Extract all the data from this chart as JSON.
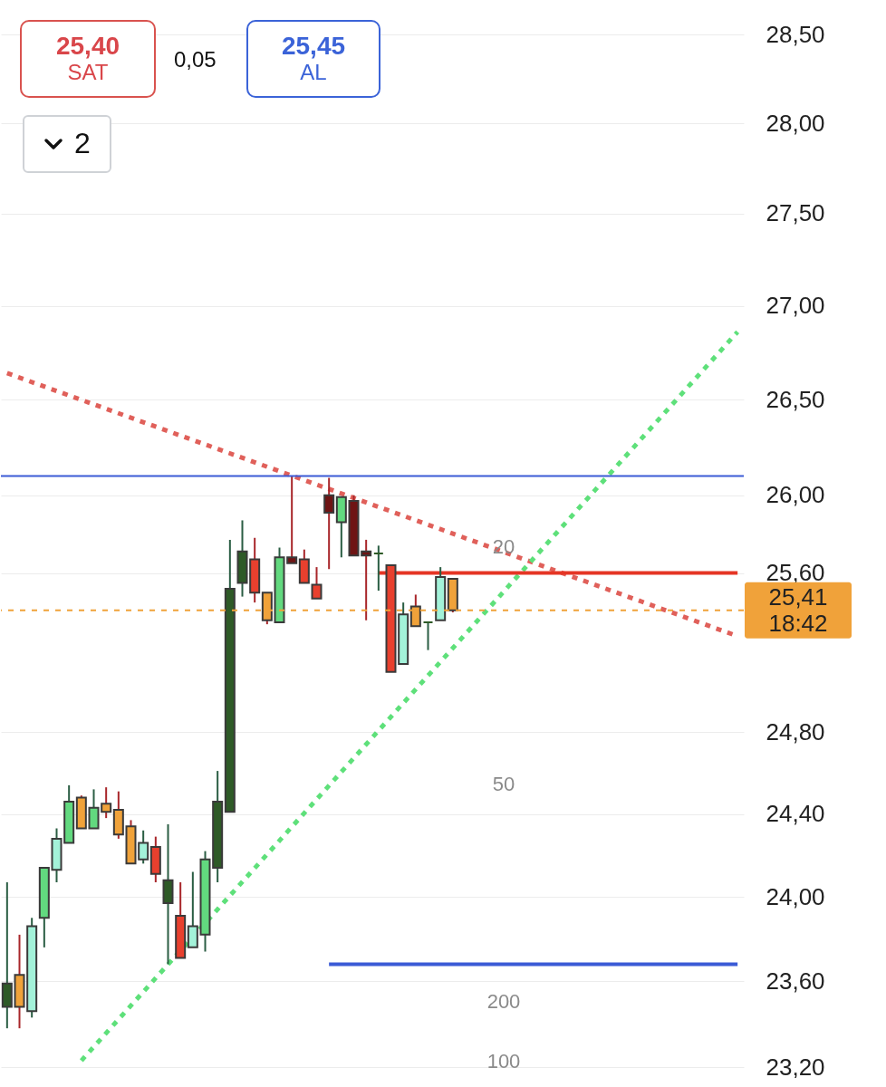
{
  "chart_data": {
    "type": "candlestick",
    "log": "y",
    "grid": "y",
    "tick_labels": "y",
    "categories": [
      null,
      null,
      null,
      null,
      null,
      null,
      null,
      null,
      null,
      null,
      null,
      null,
      null,
      null,
      null,
      null,
      null,
      null,
      null,
      null,
      null,
      null,
      null,
      null,
      null,
      null,
      null,
      null,
      null,
      null,
      null,
      null,
      null,
      null,
      null,
      null,
      null,
      null,
      null,
      null,
      null,
      null,
      null,
      null,
      null,
      null,
      null,
      null,
      null,
      null,
      null,
      null,
      null,
      null,
      null,
      null,
      null,
      null,
      null,
      null
    ],
    "ohlc": [
      [
        23.48,
        24.07,
        23.38,
        23.59
      ],
      [
        23.63,
        23.82,
        23.38,
        23.48
      ],
      [
        23.46,
        23.9,
        23.43,
        23.86
      ],
      [
        23.9,
        24.14,
        23.76,
        24.14
      ],
      [
        24.13,
        24.33,
        24.07,
        24.28
      ],
      [
        24.26,
        24.54,
        24.26,
        24.46
      ],
      [
        24.48,
        24.49,
        24.33,
        24.33
      ],
      [
        24.33,
        24.52,
        24.33,
        24.43
      ],
      [
        24.45,
        24.53,
        24.38,
        24.41
      ],
      [
        24.42,
        24.51,
        24.28,
        24.3
      ],
      [
        24.34,
        24.37,
        24.16,
        24.16
      ],
      [
        24.18,
        24.32,
        24.16,
        24.26
      ],
      [
        24.24,
        24.29,
        24.07,
        24.11
      ],
      [
        23.97,
        24.35,
        23.68,
        24.08
      ],
      [
        23.91,
        24.07,
        23.71,
        23.71
      ],
      [
        23.76,
        24.12,
        23.76,
        23.86
      ],
      [
        23.82,
        24.22,
        23.74,
        24.18
      ],
      [
        24.14,
        24.61,
        24.07,
        24.46
      ],
      [
        24.41,
        25.77,
        24.41,
        25.52
      ],
      [
        25.55,
        25.87,
        25.48,
        25.71
      ],
      [
        25.67,
        25.78,
        25.45,
        25.5
      ],
      [
        25.5,
        25.5,
        25.34,
        25.36
      ],
      [
        25.35,
        25.73,
        25.35,
        25.68
      ],
      [
        25.68,
        26.1,
        25.65,
        25.65
      ],
      [
        25.67,
        25.72,
        25.55,
        25.55
      ],
      [
        25.54,
        25.63,
        25.47,
        25.47
      ],
      [
        26.0,
        26.09,
        25.62,
        25.91
      ],
      [
        25.86,
        25.99,
        25.68,
        25.99
      ],
      [
        25.97,
        26.0,
        25.69,
        25.69
      ],
      [
        25.71,
        25.77,
        25.36,
        25.69
      ],
      [
        25.7,
        25.74,
        25.51,
        25.7
      ],
      [
        25.64,
        25.64,
        25.1,
        25.1
      ],
      [
        25.14,
        25.45,
        25.14,
        25.39
      ],
      [
        25.43,
        25.49,
        25.33,
        25.33
      ],
      [
        25.35,
        25.35,
        25.21,
        25.35
      ],
      [
        25.36,
        25.63,
        25.36,
        25.58
      ],
      [
        25.57,
        25.57,
        25.4,
        25.41
      ],
      null,
      null,
      null,
      null,
      null,
      null,
      null,
      null,
      null,
      null,
      null,
      null,
      null,
      null,
      null,
      null,
      null,
      null,
      null,
      null,
      null,
      null,
      null
    ],
    "colors": [
      "#2e5a27",
      "#f0a23a",
      "#a3f2d9",
      "#62d97f",
      "#a3f2d9",
      "#62d97f",
      "#f0a23a",
      "#62d97f",
      "#f0a23a",
      "#f0a23a",
      "#f0a23a",
      "#a3f2d9",
      "#e8402e",
      "#2e5a27",
      "#e8402e",
      "#a3f2d9",
      "#62d97f",
      "#2e5a27",
      "#2e5a27",
      "#2e5a27",
      "#e8402e",
      "#f0a23a",
      "#62d97f",
      "#6e1414",
      "#e8402e",
      "#e8402e",
      "#6e1414",
      "#62d97f",
      "#6e1414",
      "#6e1414",
      "#2e5a27",
      "#e8402e",
      "#a3f2d9",
      "#f0a23a",
      "#2e5a27",
      "#a3f2d9",
      "#f0a23a",
      null,
      null,
      null,
      null,
      null,
      null,
      null,
      null,
      null,
      null,
      null,
      null,
      null,
      null,
      null,
      null,
      null,
      null,
      null,
      null,
      null,
      null,
      null
    ],
    "series": [
      {
        "type": "line",
        "color": "#e0605a",
        "line_style": "dotted",
        "values": [
          26.64,
          null,
          null,
          null,
          null,
          null,
          null,
          null,
          null,
          null,
          null,
          null,
          null,
          null,
          null,
          null,
          null,
          null,
          null,
          null,
          null,
          null,
          null,
          null,
          null,
          null,
          null,
          null,
          null,
          null,
          null,
          null,
          null,
          null,
          null,
          null,
          null,
          null,
          null,
          null,
          null,
          null,
          null,
          null,
          null,
          null,
          null,
          null,
          null,
          null,
          null,
          null,
          null,
          null,
          null,
          null,
          null,
          null,
          null,
          25.28
        ]
      },
      {
        "type": "line",
        "color": "#5ee07a",
        "line_style": "dotted",
        "values": [
          null,
          null,
          null,
          null,
          null,
          null,
          23.23,
          null,
          null,
          null,
          null,
          null,
          null,
          null,
          null,
          null,
          null,
          null,
          null,
          null,
          null,
          null,
          null,
          null,
          null,
          null,
          null,
          null,
          null,
          null,
          null,
          null,
          null,
          null,
          null,
          null,
          null,
          null,
          null,
          null,
          null,
          null,
          null,
          null,
          null,
          null,
          null,
          null,
          null,
          null,
          null,
          null,
          null,
          null,
          null,
          null,
          null,
          null,
          null,
          26.86
        ]
      },
      {
        "type": "line",
        "color": "#e53525",
        "values": [
          null,
          null,
          null,
          null,
          null,
          null,
          null,
          null,
          null,
          null,
          null,
          null,
          null,
          null,
          null,
          null,
          null,
          null,
          null,
          null,
          null,
          null,
          null,
          null,
          null,
          null,
          null,
          null,
          null,
          null,
          25.6,
          25.6,
          25.6,
          25.6,
          25.6,
          25.6,
          25.6,
          25.6,
          25.6,
          25.6,
          25.6,
          25.6,
          25.6,
          25.6,
          25.6,
          25.6,
          25.6,
          25.6,
          25.6,
          25.6,
          25.6,
          25.6,
          25.6,
          25.6,
          25.6,
          25.6,
          25.6,
          25.6,
          25.6,
          25.6
        ]
      },
      {
        "type": "line",
        "color": "#3b5bd6",
        "values": [
          null,
          null,
          null,
          null,
          null,
          null,
          null,
          null,
          null,
          null,
          null,
          null,
          null,
          null,
          null,
          null,
          null,
          null,
          null,
          null,
          null,
          null,
          null,
          null,
          null,
          null,
          23.68,
          23.68,
          23.68,
          23.68,
          23.68,
          23.68,
          23.68,
          23.68,
          23.68,
          23.68,
          23.68,
          23.68,
          23.68,
          23.68,
          23.68,
          23.68,
          23.68,
          23.68,
          23.68,
          23.68,
          23.68,
          23.68,
          23.68,
          23.68,
          23.68,
          23.68,
          23.68,
          23.68,
          23.68,
          23.68,
          23.68,
          23.68,
          23.68,
          23.68
        ]
      }
    ],
    "ref_lines": [
      {
        "axis": "y",
        "value": 26.1,
        "color": "#3b5bd6"
      },
      {
        "axis": "y",
        "value": 25.41,
        "color": "#f0a23a",
        "line_style": "dotted",
        "label": "25,41\n18:42"
      }
    ],
    "ylim": [
      23.2,
      28.5
    ],
    "yticks": [
      {
        "value": 28.5,
        "label": "28,50"
      },
      {
        "value": 28,
        "label": "28,00"
      },
      {
        "value": 27.5,
        "label": "27,50"
      },
      {
        "value": 27,
        "label": "27,00"
      },
      {
        "value": 26.5,
        "label": "26,50"
      },
      {
        "value": 26,
        "label": "26,00"
      },
      {
        "value": 25.6,
        "label": "25,60"
      },
      {
        "value": 24.8,
        "label": "24,80"
      },
      {
        "value": 24.4,
        "label": "24,40"
      },
      {
        "value": 24,
        "label": "24,00"
      },
      {
        "value": 23.6,
        "label": "23,60"
      },
      {
        "value": 23.2,
        "label": "23,20"
      }
    ],
    "annotations": [
      "25,40",
      "SAT",
      "0,05",
      "25,45",
      "AL",
      "2",
      "20",
      "50",
      "200",
      "100"
    ]
  }
}
